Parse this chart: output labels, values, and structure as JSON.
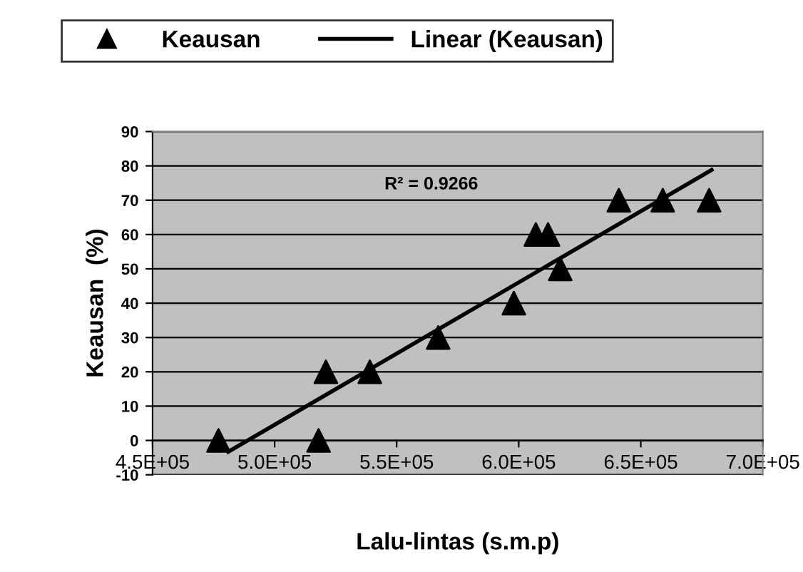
{
  "chart_data": {
    "type": "scatter",
    "xlabel": "Lalu-lintas (s.m.p)",
    "ylabel": "Keausan  (%)",
    "annotations": [
      "R² = 0.9266"
    ],
    "series": [
      {
        "name": "Keausan",
        "marker": "triangle",
        "color": "#000000",
        "x": [
          477000,
          518000,
          521000,
          539000,
          567000,
          598000,
          607000,
          612000,
          617000,
          641000,
          659000,
          678000
        ],
        "values": [
          0,
          0,
          20,
          20,
          30,
          40,
          60,
          60,
          50,
          70,
          70,
          70
        ]
      },
      {
        "name": "Linear (Keausan)",
        "type": "line",
        "marker": "none",
        "line_style": "solid",
        "color": "#000000",
        "x": [
          481000,
          679000
        ],
        "values": [
          -3.3,
          78.8
        ]
      }
    ],
    "xlim": [
      450000,
      700000
    ],
    "xticks": [
      {
        "value": 450000,
        "label": "4.5E+05"
      },
      {
        "value": 500000,
        "label": "5.0E+05"
      },
      {
        "value": 550000,
        "label": "5.5E+05"
      },
      {
        "value": 600000,
        "label": "6.0E+05"
      },
      {
        "value": 650000,
        "label": "6.5E+05"
      },
      {
        "value": 700000,
        "label": "7.0E+05"
      }
    ],
    "ylim": [
      -10,
      90
    ],
    "yticks": [
      -10,
      0,
      10,
      20,
      30,
      40,
      50,
      60,
      70,
      80,
      90
    ],
    "grid": "y",
    "legend": "top"
  }
}
